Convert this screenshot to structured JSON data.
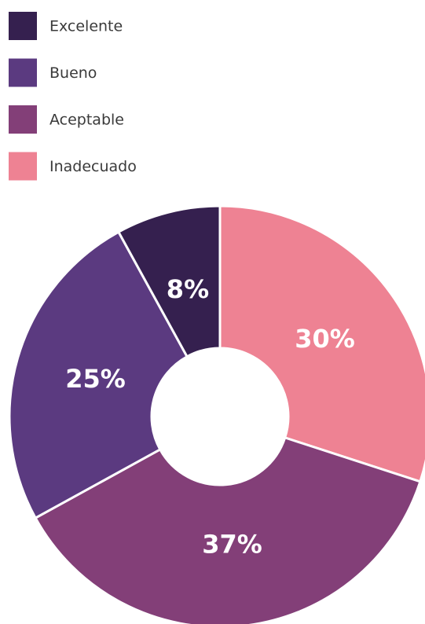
{
  "chart_data": {
    "type": "donut",
    "categories": [
      "Excelente",
      "Bueno",
      "Aceptable",
      "Inadecuado"
    ],
    "values": [
      8,
      25,
      37,
      30
    ],
    "value_labels": [
      "8%",
      "25%",
      "37%",
      "30%"
    ],
    "colors": [
      "#35204f",
      "#5b3a80",
      "#833f78",
      "#ee8293"
    ],
    "legend": "top-left"
  }
}
